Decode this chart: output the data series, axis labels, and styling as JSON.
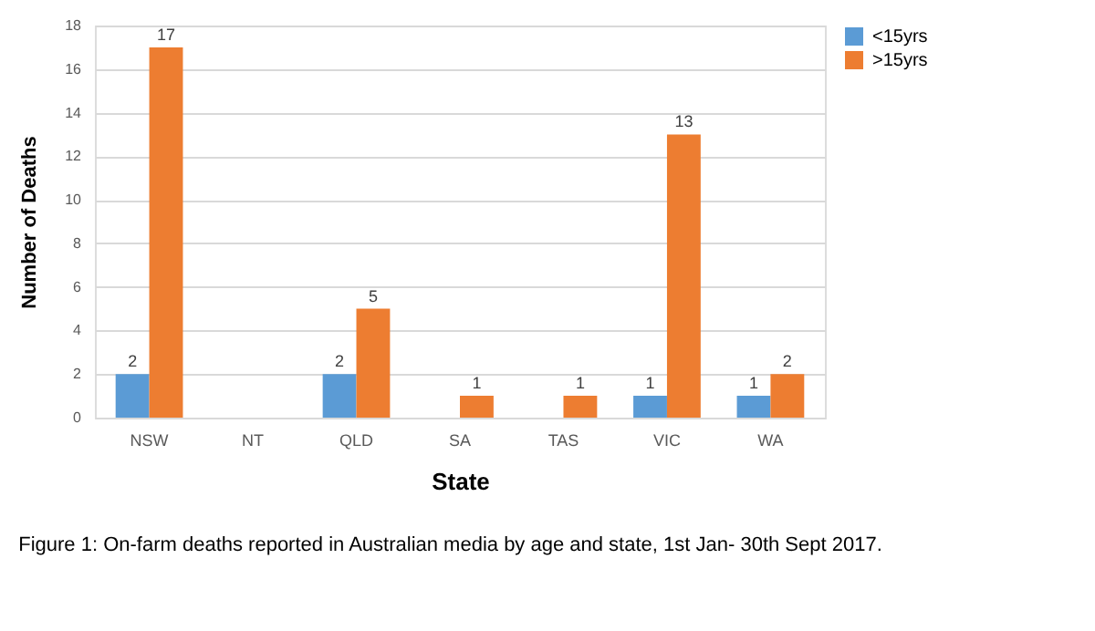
{
  "chart_data": {
    "type": "bar",
    "xlabel": "State",
    "ylabel": "Number of Deaths",
    "categories": [
      "NSW",
      "NT",
      "QLD",
      "SA",
      "TAS",
      "VIC",
      "WA"
    ],
    "series": [
      {
        "name": "<15yrs",
        "color": "#5b9bd5",
        "values": [
          2,
          null,
          2,
          null,
          null,
          1,
          1
        ]
      },
      {
        "name": ">15yrs",
        "color": "#ed7d31",
        "values": [
          17,
          null,
          5,
          1,
          1,
          13,
          2
        ]
      }
    ],
    "ylim": [
      0,
      18
    ],
    "yticks": [
      0,
      2,
      4,
      6,
      8,
      10,
      12,
      14,
      16,
      18
    ],
    "grid": "y",
    "legend": "right",
    "data_labels": true,
    "annotations": [
      "Figure 1: On-farm deaths reported in Australian media by age and state, 1st Jan- 30th Sept 2017."
    ]
  }
}
